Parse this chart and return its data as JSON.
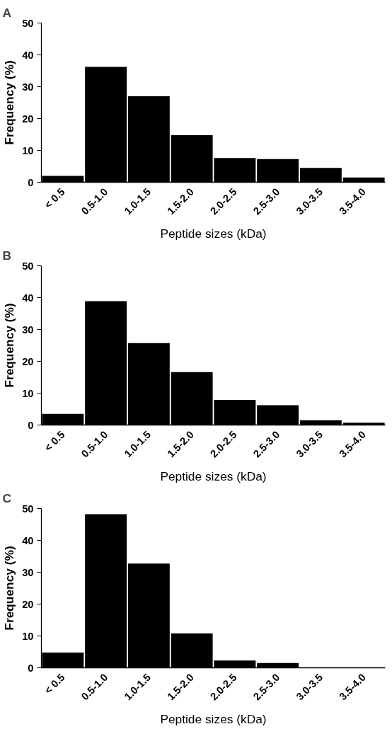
{
  "chart_data": [
    {
      "type": "bar",
      "title": "A",
      "xlabel": "Peptide sizes (kDa)",
      "ylabel": "Frequency (%)",
      "categories": [
        "< 0.5",
        "0.5-1.0",
        "1.0-1.5",
        "1.5-2.0",
        "2.0-2.5",
        "2.5-3.0",
        "3.0-3.5",
        "3.5-4.0"
      ],
      "values": [
        2.0,
        36.2,
        27.0,
        14.8,
        7.6,
        7.3,
        4.5,
        1.5
      ],
      "color": "#000000",
      "ylim": [
        0,
        50
      ],
      "yticks": [
        0,
        10,
        20,
        30,
        40,
        50
      ],
      "grid": false
    },
    {
      "type": "bar",
      "title": "B",
      "xlabel": "Peptide sizes (kDa)",
      "ylabel": "Frequency (%)",
      "categories": [
        "< 0.5",
        "0.5-1.0",
        "1.0-1.5",
        "1.5-2.0",
        "2.0-2.5",
        "2.5-3.0",
        "3.0-3.5",
        "3.5-4.0"
      ],
      "values": [
        3.5,
        38.9,
        25.7,
        16.6,
        7.9,
        6.2,
        1.5,
        0.7
      ],
      "color": "#000000",
      "ylim": [
        0,
        50
      ],
      "yticks": [
        0,
        10,
        20,
        30,
        40,
        50
      ],
      "grid": false
    },
    {
      "type": "bar",
      "title": "C",
      "xlabel": "Peptide sizes (kDa)",
      "ylabel": "Frequency (%)",
      "categories": [
        "< 0.5",
        "0.5-1.0",
        "1.0-1.5",
        "1.5-2.0",
        "2.0-2.5",
        "2.5-3.0",
        "3.0-3.5",
        "3.5-4.0"
      ],
      "values": [
        4.8,
        48.2,
        32.7,
        10.8,
        2.3,
        1.5,
        0.0,
        0.0
      ],
      "color": "#000000",
      "ylim": [
        0,
        50
      ],
      "yticks": [
        0,
        10,
        20,
        30,
        40,
        50
      ],
      "grid": false
    }
  ]
}
